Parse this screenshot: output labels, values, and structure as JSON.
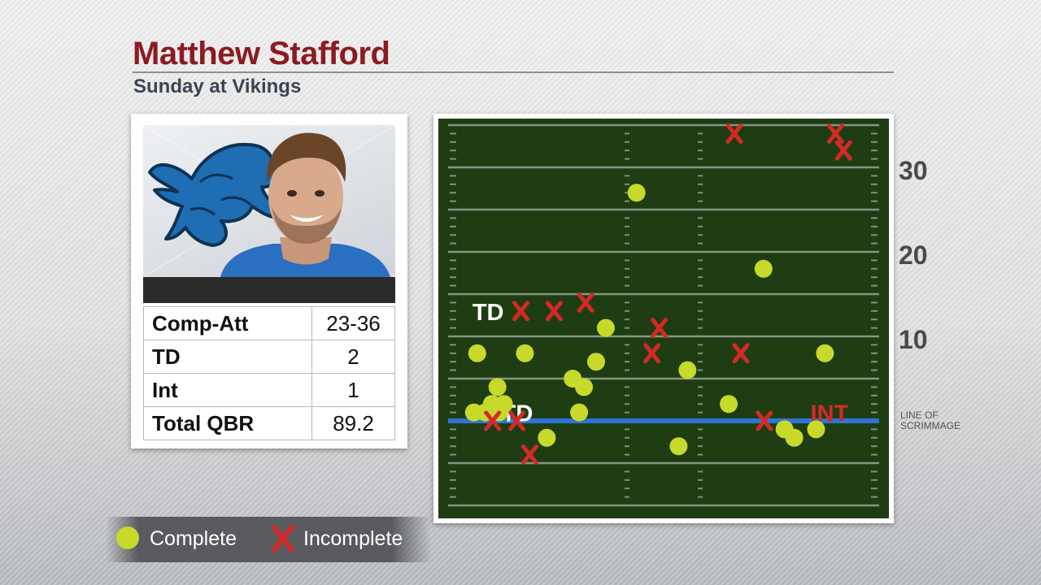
{
  "header": {
    "title": "Matthew Stafford",
    "subtitle": "Sunday at Vikings"
  },
  "stats": [
    {
      "label": "Comp-Att",
      "value": "23-36"
    },
    {
      "label": "TD",
      "value": "2"
    },
    {
      "label": "Int",
      "value": "1"
    },
    {
      "label": "Total QBR",
      "value": "89.2"
    }
  ],
  "legend": {
    "complete": "Complete",
    "incomplete": "Incomplete"
  },
  "colors": {
    "complete": "#c7d92b",
    "incomplete": "#d42a27",
    "field": "#1f3d12",
    "los": "#2e74d6",
    "td_label": "#ffffff",
    "int_label": "#d42a27"
  },
  "icons": {
    "team_logo": "lion-logo-icon",
    "incomplete_marker": "x-icon"
  },
  "chart_data": {
    "type": "scatter",
    "title": "Matthew Stafford",
    "subtitle": "Sunday at Vikings",
    "x_axis": {
      "description": "field width, left sideline to right sideline",
      "range": [
        0,
        53.3
      ]
    },
    "y_axis": {
      "description": "yards past line of scrimmage",
      "range": [
        -10,
        38
      ],
      "tick_labels": [
        "10",
        "20",
        "30"
      ],
      "ticks": [
        10,
        20,
        30
      ]
    },
    "line_of_scrimmage_label": "LINE OF SCRIMMAGE",
    "series": [
      {
        "name": "Complete",
        "points": [
          {
            "x": 3.6,
            "y": 8,
            "label": "TD"
          },
          {
            "x": 9.5,
            "y": 8
          },
          {
            "x": 6.1,
            "y": 4
          },
          {
            "x": 6.9,
            "y": 2
          },
          {
            "x": 15.4,
            "y": 5
          },
          {
            "x": 16.8,
            "y": 4
          },
          {
            "x": 18.3,
            "y": 7
          },
          {
            "x": 19.5,
            "y": 11
          },
          {
            "x": 23.3,
            "y": 27
          },
          {
            "x": 16.2,
            "y": 1
          },
          {
            "x": 12.2,
            "y": -2
          },
          {
            "x": 29.6,
            "y": 6
          },
          {
            "x": 34.7,
            "y": 2
          },
          {
            "x": 39.0,
            "y": 18
          },
          {
            "x": 46.6,
            "y": 8
          },
          {
            "x": 41.6,
            "y": -1
          },
          {
            "x": 42.8,
            "y": -2
          },
          {
            "x": 28.5,
            "y": -3
          },
          {
            "x": 45.5,
            "y": -1
          },
          {
            "x": 5.4,
            "y": 2
          },
          {
            "x": 4.6,
            "y": 1
          },
          {
            "x": 6.3,
            "y": 1
          },
          {
            "x": 3.2,
            "y": 1
          }
        ]
      },
      {
        "name": "Incomplete",
        "points": [
          {
            "x": 13.1,
            "y": 13
          },
          {
            "x": 26.1,
            "y": 11
          },
          {
            "x": 25.2,
            "y": 8
          },
          {
            "x": 36.2,
            "y": 8
          },
          {
            "x": 35.4,
            "y": 34
          },
          {
            "x": 47.9,
            "y": 34
          },
          {
            "x": 48.9,
            "y": 32
          },
          {
            "x": 5.5,
            "y": 0
          },
          {
            "x": 8.5,
            "y": 0
          },
          {
            "x": 10.1,
            "y": -4
          },
          {
            "x": 39.1,
            "y": 0,
            "label": "INT"
          },
          {
            "x": 9.0,
            "y": 13
          },
          {
            "x": 17.0,
            "y": 14
          }
        ]
      }
    ],
    "annotations": [
      {
        "text": "TD",
        "x": 3.0,
        "y": 13
      },
      {
        "text": "TD",
        "x": 6.6,
        "y": 1
      },
      {
        "text": "INT",
        "x": 44.8,
        "y": 1
      }
    ],
    "legend_position": "bottom-left"
  }
}
